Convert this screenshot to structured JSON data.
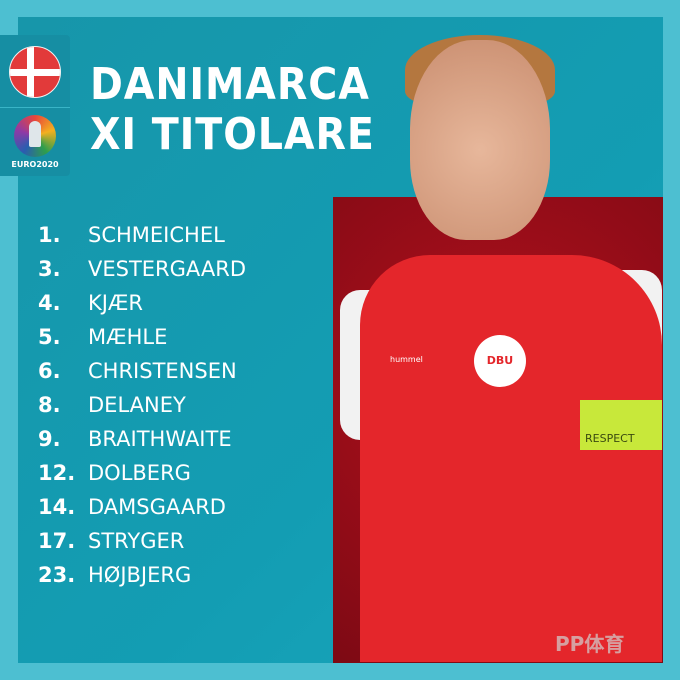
{
  "header": {
    "title_line1": "DANIMARCA",
    "title_line2": "XI TITOLARE"
  },
  "badge": {
    "flag": "denmark-flag",
    "logo_text": "EURO2020"
  },
  "players": [
    {
      "number": "1.",
      "name": "SCHMEICHEL"
    },
    {
      "number": "3.",
      "name": "VESTERGAARD"
    },
    {
      "number": "4.",
      "name": "KJÆR"
    },
    {
      "number": "5.",
      "name": "MÆHLE"
    },
    {
      "number": "6.",
      "name": "CHRISTENSEN"
    },
    {
      "number": "8.",
      "name": "DELANEY"
    },
    {
      "number": "9.",
      "name": "BRAITHWAITE"
    },
    {
      "number": "12.",
      "name": "DOLBERG"
    },
    {
      "number": "14.",
      "name": "DAMSGAARD"
    },
    {
      "number": "17.",
      "name": "STRYGER"
    },
    {
      "number": "23.",
      "name": "HØJBJERG"
    }
  ],
  "photo": {
    "crest_text": "DBU",
    "brand": "hummel",
    "armband": "RESPECT"
  },
  "watermark": "PP体育",
  "colors": {
    "outer": "#4dbfd1",
    "panel": "#1796aa",
    "photo_bg": "#9a0e18",
    "shirt": "#e4262b"
  }
}
